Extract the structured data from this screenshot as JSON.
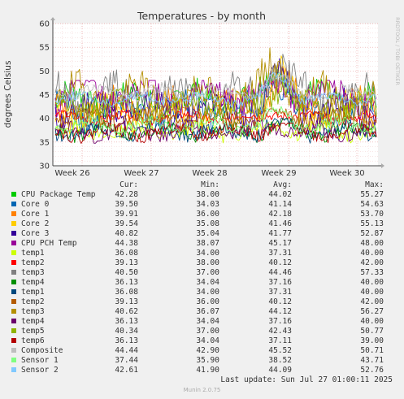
{
  "chart_data": {
    "type": "line",
    "title": "Temperatures - by month",
    "ylabel": "degrees Celsius",
    "ylim": [
      30,
      60
    ],
    "yticks": [
      "30",
      "35",
      "40",
      "45",
      "50",
      "55",
      "60"
    ],
    "week_labels": [
      "Week 26",
      "Week 27",
      "Week 28",
      "Week 29",
      "Week 30"
    ],
    "side_label": "RRDTOOL / TOBI OETIKER",
    "columns": [
      "Cur:",
      "Min:",
      "Avg:",
      "Max:"
    ],
    "series": [
      {
        "name": "CPU Package Temp",
        "color": "#00cc00",
        "cur": "42.28",
        "min": "38.00",
        "avg": "44.02",
        "max": "55.27"
      },
      {
        "name": "Core 0",
        "color": "#0066b3",
        "cur": "39.50",
        "min": "34.03",
        "avg": "41.14",
        "max": "54.63"
      },
      {
        "name": "Core 1",
        "color": "#ff8000",
        "cur": "39.91",
        "min": "36.00",
        "avg": "42.18",
        "max": "53.70"
      },
      {
        "name": "Core 2",
        "color": "#ffcc00",
        "cur": "39.54",
        "min": "35.08",
        "avg": "41.46",
        "max": "55.13"
      },
      {
        "name": "Core 3",
        "color": "#330099",
        "cur": "40.82",
        "min": "35.04",
        "avg": "41.77",
        "max": "52.87"
      },
      {
        "name": "CPU PCH Temp",
        "color": "#990099",
        "cur": "44.38",
        "min": "38.07",
        "avg": "45.17",
        "max": "48.00"
      },
      {
        "name": "temp1",
        "color": "#ccff00",
        "cur": "36.08",
        "min": "34.00",
        "avg": "37.31",
        "max": "40.00"
      },
      {
        "name": "temp2",
        "color": "#ff0000",
        "cur": "39.13",
        "min": "38.00",
        "avg": "40.12",
        "max": "42.00"
      },
      {
        "name": "temp3",
        "color": "#808080",
        "cur": "40.50",
        "min": "37.00",
        "avg": "44.46",
        "max": "57.33"
      },
      {
        "name": "temp4",
        "color": "#008f00",
        "cur": "36.13",
        "min": "34.04",
        "avg": "37.16",
        "max": "40.00"
      },
      {
        "name": "temp1",
        "color": "#00487d",
        "cur": "36.08",
        "min": "34.00",
        "avg": "37.31",
        "max": "40.00"
      },
      {
        "name": "temp2",
        "color": "#b35a00",
        "cur": "39.13",
        "min": "36.00",
        "avg": "40.12",
        "max": "42.00"
      },
      {
        "name": "temp3",
        "color": "#b38f00",
        "cur": "40.62",
        "min": "36.07",
        "avg": "44.12",
        "max": "56.27"
      },
      {
        "name": "temp4",
        "color": "#6b006b",
        "cur": "36.13",
        "min": "34.04",
        "avg": "37.16",
        "max": "40.00"
      },
      {
        "name": "temp5",
        "color": "#8fb300",
        "cur": "40.34",
        "min": "37.00",
        "avg": "42.43",
        "max": "50.77"
      },
      {
        "name": "temp6",
        "color": "#b30000",
        "cur": "36.13",
        "min": "34.04",
        "avg": "37.11",
        "max": "39.00"
      },
      {
        "name": "Composite",
        "color": "#bebebe",
        "cur": "44.44",
        "min": "42.90",
        "avg": "45.52",
        "max": "50.71"
      },
      {
        "name": "Sensor 1",
        "color": "#80ff80",
        "cur": "37.44",
        "min": "35.90",
        "avg": "38.52",
        "max": "43.71"
      },
      {
        "name": "Sensor 2",
        "color": "#80c9ff",
        "cur": "42.61",
        "min": "41.90",
        "avg": "44.09",
        "max": "52.76"
      }
    ]
  },
  "footer": {
    "last_update": "Last update: Sun Jul 27 01:00:11 2025",
    "generator": "Munin 2.0.75"
  }
}
